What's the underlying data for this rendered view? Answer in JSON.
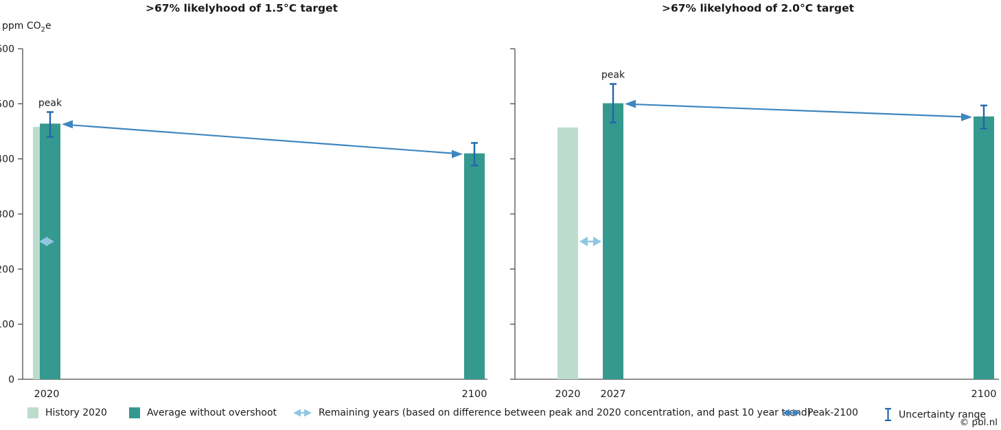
{
  "colors": {
    "history": "#bcdccd",
    "average": "#35998f",
    "remaining_arrow": "#8fc6e1",
    "peak_arrow": "#3e86c0",
    "uncertainty": "#2166ac",
    "axis": "#4d4d4d",
    "text": "#1a1a1a"
  },
  "y_axis": {
    "label_pre": "ppm CO",
    "label_sub": "2",
    "label_post": "e"
  },
  "legend": [
    {
      "icon": "swatch-history",
      "label": "History 2020"
    },
    {
      "icon": "swatch-average",
      "label": "Average without overshoot"
    },
    {
      "icon": "remaining-years-arrow",
      "label": "Remaining years (based on difference between peak and 2020 concentration, and past 10 year trend)"
    },
    {
      "icon": "peak-2100-arrow",
      "label": "Peak-2100"
    },
    {
      "icon": "uncertainty-range",
      "label": "Uncertainty range"
    }
  ],
  "copyright": "© pbl.nl",
  "chart_data": [
    {
      "type": "bar",
      "title": ">67% likelyhood of 1.5°C target",
      "xlabel": "",
      "ylabel": "ppm CO2e",
      "ylim": [
        0,
        600
      ],
      "yticks": [
        0,
        100,
        200,
        300,
        400,
        500,
        600
      ],
      "grid": false,
      "legend_position": "bottom",
      "categories": [
        "2020",
        "2100"
      ],
      "bars": [
        {
          "category": "2020",
          "series": "History 2020",
          "value": 458,
          "color": "#bcdccd"
        },
        {
          "category": "2020",
          "series": "Average without overshoot",
          "role": "peak",
          "peak_label": "peak",
          "value": 464,
          "error_low": 440,
          "error_high": 485,
          "color": "#35998f"
        },
        {
          "category": "2100",
          "series": "Average without overshoot",
          "value": 410,
          "error_low": 388,
          "error_high": 429,
          "color": "#35998f"
        }
      ],
      "annotations": {
        "remaining_years_arrow": {
          "level": 250,
          "from_year": "2020",
          "to_year": "2020"
        },
        "peak_to_2100_arrow": {
          "from": "peak",
          "to": "2100"
        }
      }
    },
    {
      "type": "bar",
      "title": ">67% likelyhood of 2.0°C target",
      "xlabel": "",
      "ylabel": "ppm CO2e",
      "ylim": [
        0,
        600
      ],
      "yticks": [
        0,
        100,
        200,
        300,
        400,
        500,
        600
      ],
      "grid": false,
      "legend_position": "bottom",
      "categories": [
        "2020",
        "2027",
        "2100"
      ],
      "bars": [
        {
          "category": "2020",
          "series": "History 2020",
          "value": 457,
          "color": "#bcdccd"
        },
        {
          "category": "2027",
          "series": "Average without overshoot",
          "role": "peak",
          "peak_label": "peak",
          "value": 501,
          "error_low": 466,
          "error_high": 536,
          "color": "#35998f"
        },
        {
          "category": "2100",
          "series": "Average without overshoot",
          "value": 477,
          "error_low": 455,
          "error_high": 497,
          "color": "#35998f"
        }
      ],
      "annotations": {
        "remaining_years_arrow": {
          "level": 250,
          "from_year": "2020",
          "to_year": "2027"
        },
        "peak_to_2100_arrow": {
          "from": "peak",
          "to": "2100"
        }
      }
    }
  ]
}
